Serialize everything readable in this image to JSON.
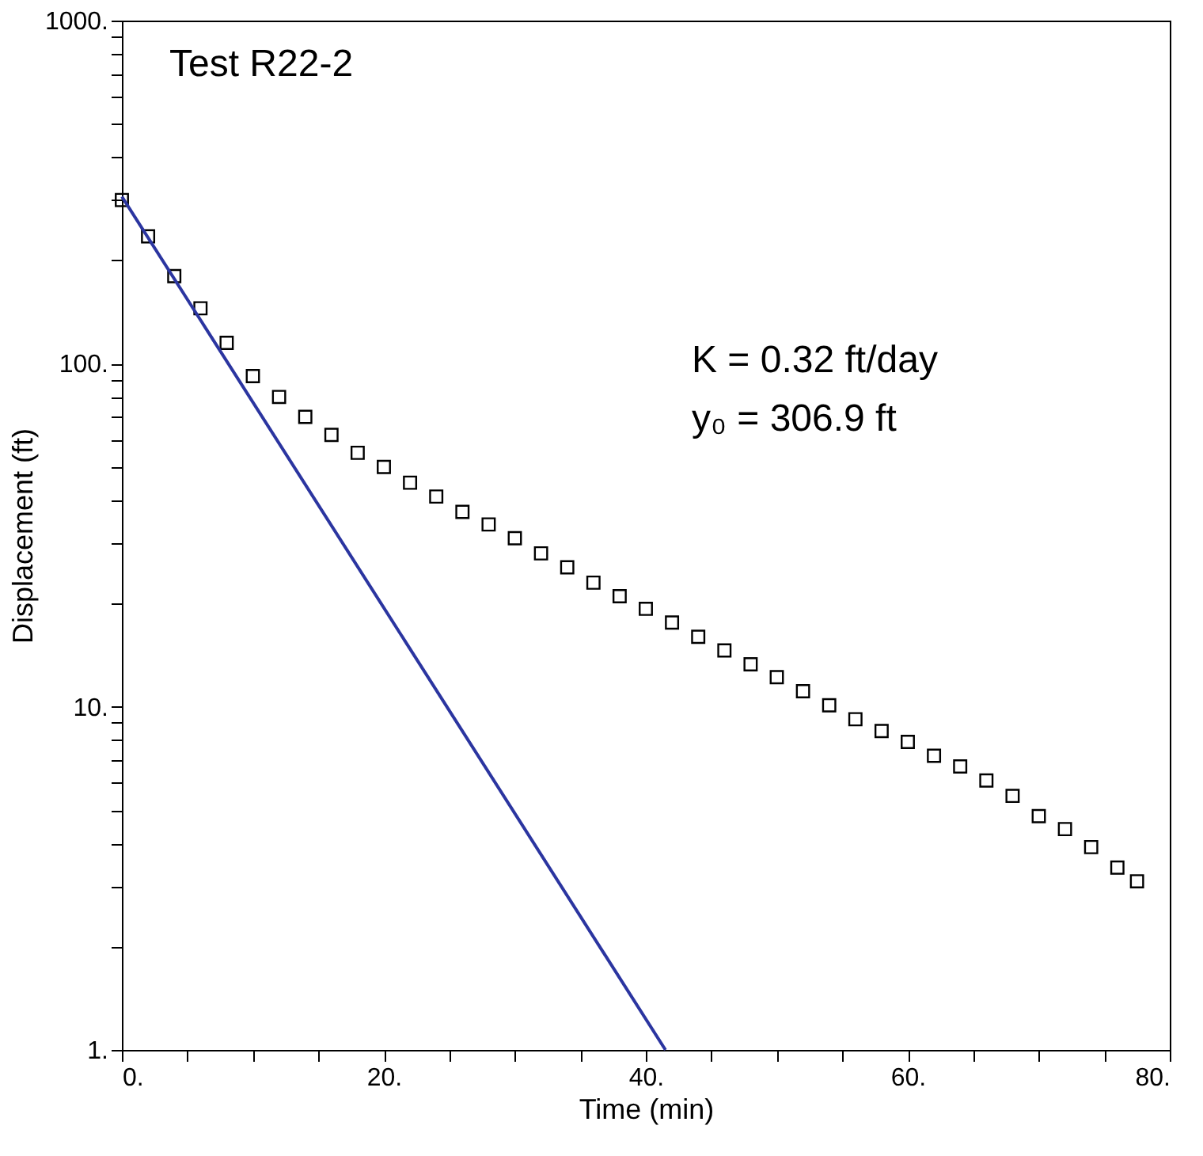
{
  "chart_data": {
    "type": "scatter",
    "xlabel": "Time (min)",
    "ylabel": "Displacement (ft)",
    "log": "y",
    "grid": false,
    "xlim": [
      0,
      80
    ],
    "ylim": [
      1,
      1000
    ],
    "xticks": [
      {
        "value": 0,
        "label": "0."
      },
      {
        "value": 5,
        "label": null
      },
      {
        "value": 10,
        "label": null
      },
      {
        "value": 15,
        "label": null
      },
      {
        "value": 20,
        "label": "20."
      },
      {
        "value": 25,
        "label": null
      },
      {
        "value": 30,
        "label": null
      },
      {
        "value": 35,
        "label": null
      },
      {
        "value": 40,
        "label": "40."
      },
      {
        "value": 45,
        "label": null
      },
      {
        "value": 50,
        "label": null
      },
      {
        "value": 55,
        "label": null
      },
      {
        "value": 60,
        "label": "60."
      },
      {
        "value": 65,
        "label": null
      },
      {
        "value": 70,
        "label": null
      },
      {
        "value": 75,
        "label": null
      },
      {
        "value": 80,
        "label": "80."
      }
    ],
    "yticks": [
      {
        "value": 1,
        "label": "1."
      },
      {
        "value": 2,
        "label": null
      },
      {
        "value": 3,
        "label": null
      },
      {
        "value": 4,
        "label": null
      },
      {
        "value": 5,
        "label": null
      },
      {
        "value": 6,
        "label": null
      },
      {
        "value": 7,
        "label": null
      },
      {
        "value": 8,
        "label": null
      },
      {
        "value": 9,
        "label": null
      },
      {
        "value": 10,
        "label": "10."
      },
      {
        "value": 20,
        "label": null
      },
      {
        "value": 30,
        "label": null
      },
      {
        "value": 40,
        "label": null
      },
      {
        "value": 50,
        "label": null
      },
      {
        "value": 60,
        "label": null
      },
      {
        "value": 70,
        "label": null
      },
      {
        "value": 80,
        "label": null
      },
      {
        "value": 90,
        "label": null
      },
      {
        "value": 100,
        "label": "100."
      },
      {
        "value": 200,
        "label": null
      },
      {
        "value": 300,
        "label": null
      },
      {
        "value": 400,
        "label": null
      },
      {
        "value": 500,
        "label": null
      },
      {
        "value": 600,
        "label": null
      },
      {
        "value": 700,
        "label": null
      },
      {
        "value": 800,
        "label": null
      },
      {
        "value": 900,
        "label": null
      },
      {
        "value": 1000,
        "label": "1000."
      }
    ],
    "annotations": [
      "Test R22-2",
      "K = 0.32 ft/day",
      "y₀ = 306.9 ft"
    ],
    "series": [
      {
        "marker": "square",
        "color": "#000000",
        "x": [
          0,
          2,
          4,
          6,
          8,
          10,
          12,
          14,
          16,
          18,
          20,
          22,
          24,
          26,
          28,
          30,
          32,
          34,
          36,
          38,
          40,
          42,
          44,
          46,
          48,
          50,
          52,
          54,
          56,
          58,
          60,
          62,
          64,
          66,
          68,
          70,
          72,
          74,
          76,
          77.5
        ],
        "values": [
          300,
          235,
          180,
          145,
          115,
          92,
          80,
          70,
          62,
          55,
          50,
          45,
          41,
          37,
          34,
          31,
          28,
          25.5,
          23,
          21,
          19.3,
          17.6,
          16,
          14.6,
          13.3,
          12.2,
          11.1,
          10.1,
          9.2,
          8.5,
          7.9,
          7.2,
          6.7,
          6.1,
          5.5,
          4.8,
          4.4,
          3.9,
          3.4,
          3.1
        ]
      },
      {
        "type": "line",
        "marker": "none",
        "line_style": "solid",
        "color": "#2b35a0",
        "x": [
          0,
          41.5
        ],
        "values": [
          306.9,
          1
        ]
      }
    ]
  }
}
